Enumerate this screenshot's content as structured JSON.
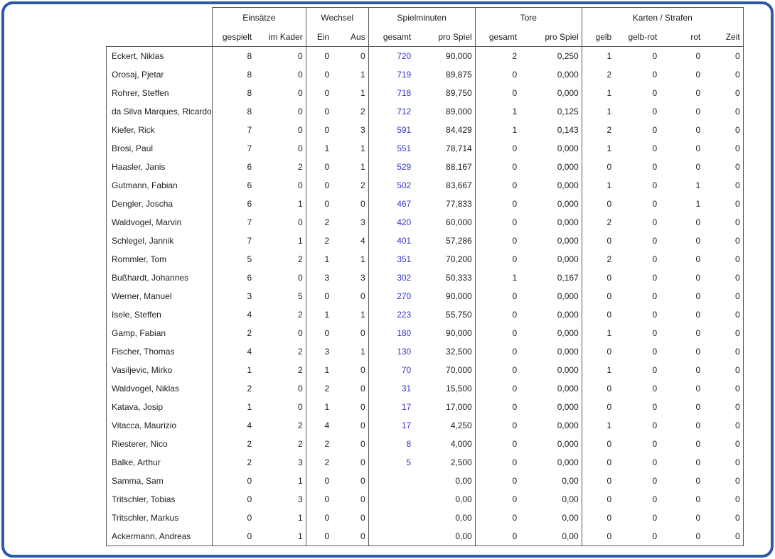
{
  "window": {
    "frame_color": "#2a5aa8"
  },
  "table": {
    "minutes_link_color": "#3333cc",
    "groups": [
      {
        "label": "Einsätze",
        "cols": [
          "gespielt",
          "im Kader"
        ]
      },
      {
        "label": "Wechsel",
        "cols": [
          "Ein",
          "Aus"
        ]
      },
      {
        "label": "Spielminuten",
        "cols": [
          "gesamt",
          "pro Spiel"
        ]
      },
      {
        "label": "Tore",
        "cols": [
          "gesamt",
          "pro Spiel"
        ]
      },
      {
        "label": "Karten / Strafen",
        "cols": [
          "gelb",
          "gelb-rot",
          "rot",
          "Zeit"
        ]
      }
    ],
    "rows": [
      {
        "name": "Eckert, Niklas",
        "values": [
          "8",
          "0",
          "0",
          "0",
          "720",
          "90,000",
          "2",
          "0,250",
          "1",
          "0",
          "0",
          "0"
        ]
      },
      {
        "name": "Orosaj, Pjetar",
        "values": [
          "8",
          "0",
          "0",
          "1",
          "719",
          "89,875",
          "0",
          "0,000",
          "2",
          "0",
          "0",
          "0"
        ]
      },
      {
        "name": "Rohrer, Steffen",
        "values": [
          "8",
          "0",
          "0",
          "1",
          "718",
          "89,750",
          "0",
          "0,000",
          "1",
          "0",
          "0",
          "0"
        ]
      },
      {
        "name": "da Silva Marques, Ricardo",
        "values": [
          "8",
          "0",
          "0",
          "2",
          "712",
          "89,000",
          "1",
          "0,125",
          "1",
          "0",
          "0",
          "0"
        ]
      },
      {
        "name": "Kiefer, Rick",
        "values": [
          "7",
          "0",
          "0",
          "3",
          "591",
          "84,429",
          "1",
          "0,143",
          "2",
          "0",
          "0",
          "0"
        ]
      },
      {
        "name": "Brosi, Paul",
        "values": [
          "7",
          "0",
          "1",
          "1",
          "551",
          "78,714",
          "0",
          "0,000",
          "1",
          "0",
          "0",
          "0"
        ]
      },
      {
        "name": "Haasler, Janis",
        "values": [
          "6",
          "2",
          "0",
          "1",
          "529",
          "88,167",
          "0",
          "0,000",
          "0",
          "0",
          "0",
          "0"
        ]
      },
      {
        "name": "Gutmann, Fabian",
        "values": [
          "6",
          "0",
          "0",
          "2",
          "502",
          "83,667",
          "0",
          "0,000",
          "1",
          "0",
          "1",
          "0"
        ]
      },
      {
        "name": "Dengler, Joscha",
        "values": [
          "6",
          "1",
          "0",
          "0",
          "467",
          "77,833",
          "0",
          "0,000",
          "0",
          "0",
          "1",
          "0"
        ]
      },
      {
        "name": "Waldvogel, Marvin",
        "values": [
          "7",
          "0",
          "2",
          "3",
          "420",
          "60,000",
          "0",
          "0,000",
          "2",
          "0",
          "0",
          "0"
        ]
      },
      {
        "name": "Schlegel, Jannik",
        "values": [
          "7",
          "1",
          "2",
          "4",
          "401",
          "57,286",
          "0",
          "0,000",
          "0",
          "0",
          "0",
          "0"
        ]
      },
      {
        "name": "Rommler, Tom",
        "values": [
          "5",
          "2",
          "1",
          "1",
          "351",
          "70,200",
          "0",
          "0,000",
          "2",
          "0",
          "0",
          "0"
        ]
      },
      {
        "name": "Bußhardt, Johannes",
        "values": [
          "6",
          "0",
          "3",
          "3",
          "302",
          "50,333",
          "1",
          "0,167",
          "0",
          "0",
          "0",
          "0"
        ]
      },
      {
        "name": "Werner, Manuel",
        "values": [
          "3",
          "5",
          "0",
          "0",
          "270",
          "90,000",
          "0",
          "0,000",
          "0",
          "0",
          "0",
          "0"
        ]
      },
      {
        "name": "Isele, Steffen",
        "values": [
          "4",
          "2",
          "1",
          "1",
          "223",
          "55,750",
          "0",
          "0,000",
          "0",
          "0",
          "0",
          "0"
        ]
      },
      {
        "name": "Gamp, Fabian",
        "values": [
          "2",
          "0",
          "0",
          "0",
          "180",
          "90,000",
          "0",
          "0,000",
          "1",
          "0",
          "0",
          "0"
        ]
      },
      {
        "name": "Fischer, Thomas",
        "values": [
          "4",
          "2",
          "3",
          "1",
          "130",
          "32,500",
          "0",
          "0,000",
          "0",
          "0",
          "0",
          "0"
        ]
      },
      {
        "name": "Vasiljevic, Mirko",
        "values": [
          "1",
          "2",
          "1",
          "0",
          "70",
          "70,000",
          "0",
          "0,000",
          "1",
          "0",
          "0",
          "0"
        ]
      },
      {
        "name": "Waldvogel, Niklas",
        "values": [
          "2",
          "0",
          "2",
          "0",
          "31",
          "15,500",
          "0",
          "0,000",
          "0",
          "0",
          "0",
          "0"
        ]
      },
      {
        "name": "Katava, Josip",
        "values": [
          "1",
          "0",
          "1",
          "0",
          "17",
          "17,000",
          "0",
          "0,000",
          "0",
          "0",
          "0",
          "0"
        ]
      },
      {
        "name": "Vitacca, Maurizio",
        "values": [
          "4",
          "2",
          "4",
          "0",
          "17",
          "4,250",
          "0",
          "0,000",
          "1",
          "0",
          "0",
          "0"
        ]
      },
      {
        "name": "Riesterer, Nico",
        "values": [
          "2",
          "2",
          "2",
          "0",
          "8",
          "4,000",
          "0",
          "0,000",
          "0",
          "0",
          "0",
          "0"
        ]
      },
      {
        "name": "Balke, Arthur",
        "values": [
          "2",
          "3",
          "2",
          "0",
          "5",
          "2,500",
          "0",
          "0,000",
          "0",
          "0",
          "0",
          "0"
        ]
      },
      {
        "name": "Samma, Sam",
        "values": [
          "0",
          "1",
          "0",
          "0",
          "",
          "0,00",
          "0",
          "0,00",
          "0",
          "0",
          "0",
          "0"
        ]
      },
      {
        "name": "Tritschler, Tobias",
        "values": [
          "0",
          "3",
          "0",
          "0",
          "",
          "0,00",
          "0",
          "0,00",
          "0",
          "0",
          "0",
          "0"
        ]
      },
      {
        "name": "Tritschler, Markus",
        "values": [
          "0",
          "1",
          "0",
          "0",
          "",
          "0,00",
          "0",
          "0,00",
          "0",
          "0",
          "0",
          "0"
        ]
      },
      {
        "name": "Ackermann, Andreas",
        "values": [
          "0",
          "1",
          "0",
          "0",
          "",
          "0,00",
          "0",
          "0,00",
          "0",
          "0",
          "0",
          "0"
        ]
      }
    ]
  }
}
